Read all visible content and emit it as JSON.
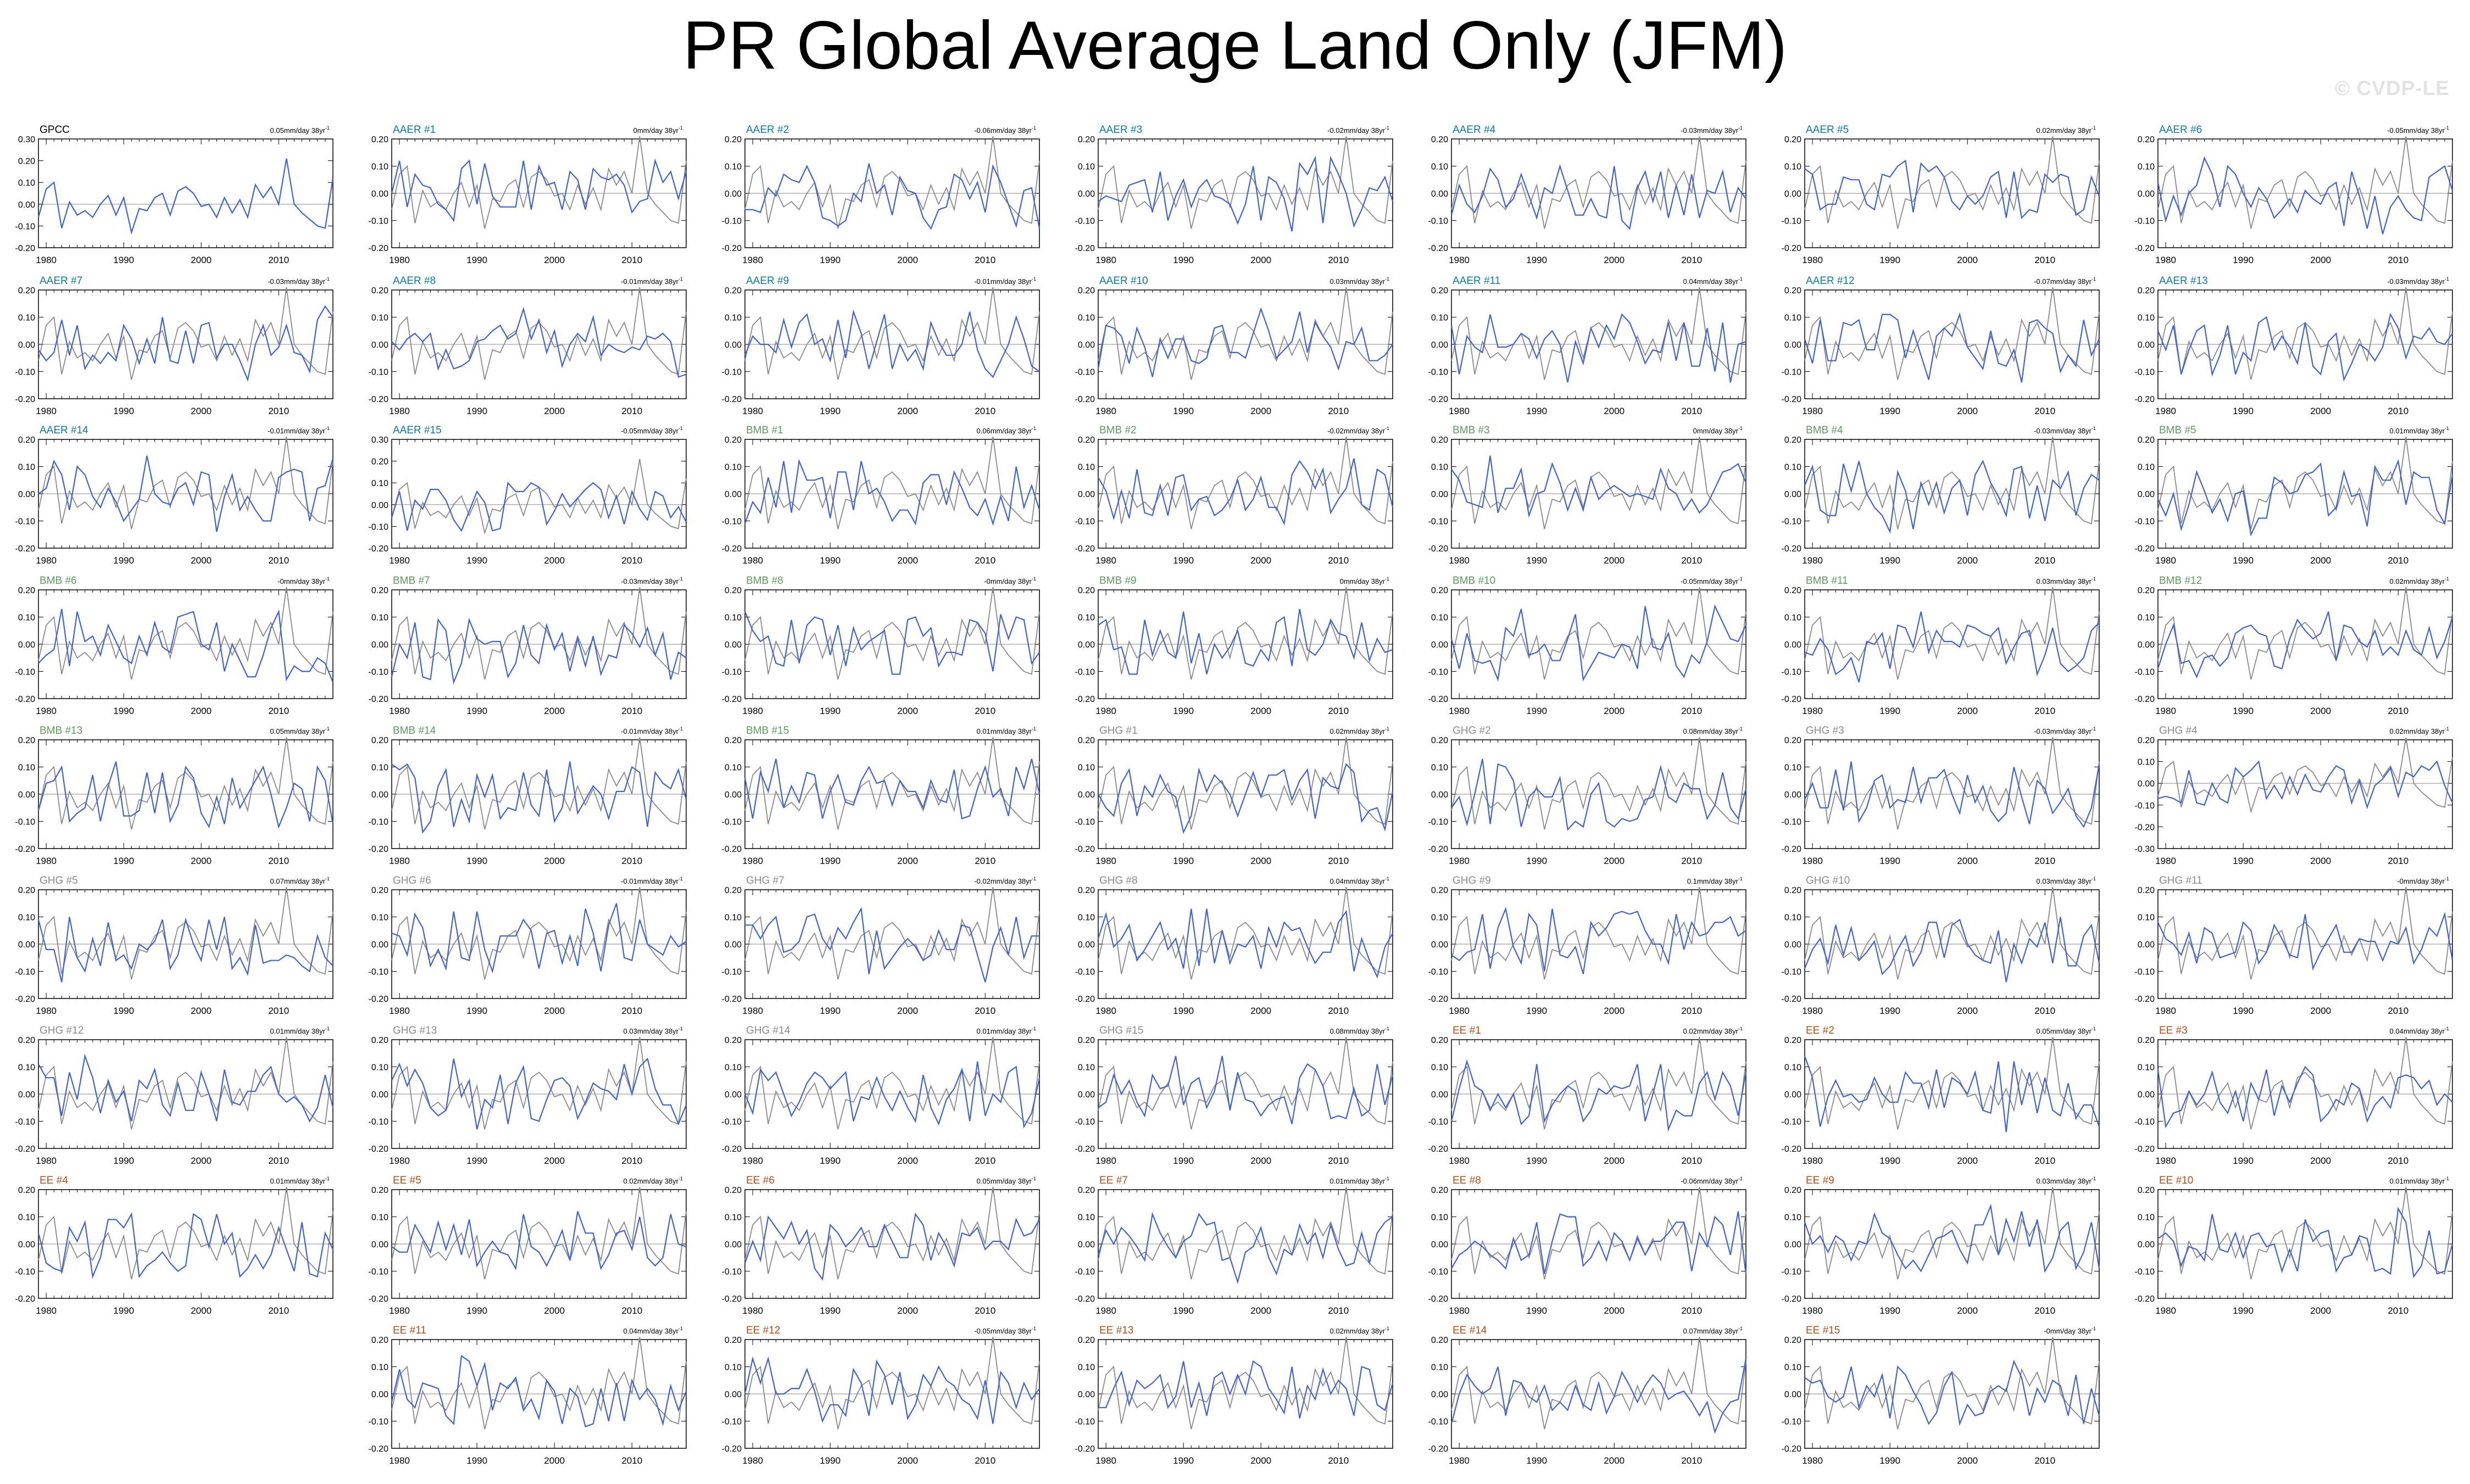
{
  "title": "PR Global Average Land Only (JFM)",
  "watermark": "© CVDP-LE",
  "colors": {
    "obs": "#000000",
    "member": "#3f62d6",
    "obs_overlay": "#8a8a8a",
    "zero_line": "#b0b0b0",
    "AAER": "#0c7aa8",
    "BMB": "#5e9c5e",
    "GHG": "#8c8c8c",
    "EE": "#b4501a"
  },
  "x_ticks": [
    "1980",
    "1990",
    "2000",
    "2010"
  ],
  "chart_data": {
    "type": "line",
    "x_range": [
      1979,
      2018
    ],
    "panels": [
      {
        "label": "GPCC",
        "group": "OBS",
        "trend": "0.05mm/day 38yr",
        "yticks": [
          "0.30",
          "0.20",
          "0.10",
          "0.00",
          "-0.10",
          "-0.20"
        ],
        "ylim": [
          -0.2,
          0.3
        ]
      },
      {
        "label": "AAER #1",
        "group": "AAER",
        "trend": "0mm/day 38yr",
        "yticks": [
          "0.20",
          "0.10",
          "0.00",
          "-0.10",
          "-0.20"
        ],
        "ylim": [
          -0.2,
          0.2
        ]
      },
      {
        "label": "AAER #2",
        "group": "AAER",
        "trend": "-0.06mm/day 38yr",
        "yticks": [
          "0.20",
          "0.10",
          "0.00",
          "-0.10",
          "-0.20"
        ],
        "ylim": [
          -0.2,
          0.2
        ]
      },
      {
        "label": "AAER #3",
        "group": "AAER",
        "trend": "-0.02mm/day 38yr",
        "yticks": [
          "0.20",
          "0.10",
          "0.00",
          "-0.10",
          "-0.20"
        ],
        "ylim": [
          -0.2,
          0.2
        ]
      },
      {
        "label": "AAER #4",
        "group": "AAER",
        "trend": "-0.03mm/day 38yr",
        "yticks": [
          "0.20",
          "0.10",
          "0.00",
          "-0.10",
          "-0.20"
        ],
        "ylim": [
          -0.2,
          0.2
        ]
      },
      {
        "label": "AAER #5",
        "group": "AAER",
        "trend": "0.02mm/day 38yr",
        "yticks": [
          "0.20",
          "0.10",
          "0.00",
          "-0.10",
          "-0.20"
        ],
        "ylim": [
          -0.2,
          0.2
        ]
      },
      {
        "label": "AAER #6",
        "group": "AAER",
        "trend": "-0.05mm/day 38yr",
        "yticks": [
          "0.20",
          "0.10",
          "0.00",
          "-0.10",
          "-0.20"
        ],
        "ylim": [
          -0.2,
          0.2
        ]
      },
      {
        "label": "AAER #7",
        "group": "AAER",
        "trend": "-0.03mm/day 38yr",
        "yticks": [
          "0.20",
          "0.10",
          "0.00",
          "-0.10",
          "-0.20"
        ],
        "ylim": [
          -0.2,
          0.2
        ]
      },
      {
        "label": "AAER #8",
        "group": "AAER",
        "trend": "-0.01mm/day 38yr",
        "yticks": [
          "0.20",
          "0.10",
          "0.00",
          "-0.10",
          "-0.20"
        ],
        "ylim": [
          -0.2,
          0.2
        ]
      },
      {
        "label": "AAER #9",
        "group": "AAER",
        "trend": "-0.01mm/day 38yr",
        "yticks": [
          "0.20",
          "0.10",
          "0.00",
          "-0.10",
          "-0.20"
        ],
        "ylim": [
          -0.2,
          0.2
        ]
      },
      {
        "label": "AAER #10",
        "group": "AAER",
        "trend": "0.03mm/day 38yr",
        "yticks": [
          "0.20",
          "0.10",
          "0.00",
          "-0.10",
          "-0.20"
        ],
        "ylim": [
          -0.2,
          0.2
        ]
      },
      {
        "label": "AAER #11",
        "group": "AAER",
        "trend": "0.04mm/day 38yr",
        "yticks": [
          "0.20",
          "0.10",
          "0.00",
          "-0.10",
          "-0.20"
        ],
        "ylim": [
          -0.2,
          0.2
        ]
      },
      {
        "label": "AAER #12",
        "group": "AAER",
        "trend": "-0.07mm/day 38yr",
        "yticks": [
          "0.20",
          "0.10",
          "0.00",
          "-0.10",
          "-0.20"
        ],
        "ylim": [
          -0.2,
          0.2
        ]
      },
      {
        "label": "AAER #13",
        "group": "AAER",
        "trend": "-0.03mm/day 38yr",
        "yticks": [
          "0.20",
          "0.10",
          "0.00",
          "-0.10",
          "-0.20"
        ],
        "ylim": [
          -0.2,
          0.2
        ]
      },
      {
        "label": "AAER #14",
        "group": "AAER",
        "trend": "-0.01mm/day 38yr",
        "yticks": [
          "0.20",
          "0.10",
          "0.00",
          "-0.10",
          "-0.20"
        ],
        "ylim": [
          -0.2,
          0.2
        ]
      },
      {
        "label": "AAER #15",
        "group": "AAER",
        "trend": "-0.05mm/day 38yr",
        "yticks": [
          "0.30",
          "0.20",
          "0.10",
          "0.00",
          "-0.10",
          "-0.20"
        ],
        "ylim": [
          -0.2,
          0.3
        ]
      },
      {
        "label": "BMB #1",
        "group": "BMB",
        "trend": "0.06mm/day 38yr",
        "yticks": [
          "0.20",
          "0.10",
          "0.00",
          "-0.10",
          "-0.20"
        ],
        "ylim": [
          -0.2,
          0.2
        ]
      },
      {
        "label": "BMB #2",
        "group": "BMB",
        "trend": "-0.02mm/day 38yr",
        "yticks": [
          "0.20",
          "0.10",
          "0.00",
          "-0.10",
          "-0.20"
        ],
        "ylim": [
          -0.2,
          0.2
        ]
      },
      {
        "label": "BMB #3",
        "group": "BMB",
        "trend": "0mm/day 38yr",
        "yticks": [
          "0.20",
          "0.10",
          "0.00",
          "-0.10",
          "-0.20"
        ],
        "ylim": [
          -0.2,
          0.2
        ]
      },
      {
        "label": "BMB #4",
        "group": "BMB",
        "trend": "-0.03mm/day 38yr",
        "yticks": [
          "0.20",
          "0.10",
          "0.00",
          "-0.10",
          "-0.20"
        ],
        "ylim": [
          -0.2,
          0.2
        ]
      },
      {
        "label": "BMB #5",
        "group": "BMB",
        "trend": "0.01mm/day 38yr",
        "yticks": [
          "0.20",
          "0.10",
          "0.00",
          "-0.10",
          "-0.20"
        ],
        "ylim": [
          -0.2,
          0.2
        ]
      },
      {
        "label": "BMB #6",
        "group": "BMB",
        "trend": "-0mm/day 38yr",
        "yticks": [
          "0.20",
          "0.10",
          "0.00",
          "-0.10",
          "-0.20"
        ],
        "ylim": [
          -0.2,
          0.2
        ]
      },
      {
        "label": "BMB #7",
        "group": "BMB",
        "trend": "-0.03mm/day 38yr",
        "yticks": [
          "0.20",
          "0.10",
          "0.00",
          "-0.10",
          "-0.20"
        ],
        "ylim": [
          -0.2,
          0.2
        ]
      },
      {
        "label": "BMB #8",
        "group": "BMB",
        "trend": "-0mm/day 38yr",
        "yticks": [
          "0.20",
          "0.10",
          "0.00",
          "-0.10",
          "-0.20"
        ],
        "ylim": [
          -0.2,
          0.2
        ]
      },
      {
        "label": "BMB #9",
        "group": "BMB",
        "trend": "0mm/day 38yr",
        "yticks": [
          "0.20",
          "0.10",
          "0.00",
          "-0.10",
          "-0.20"
        ],
        "ylim": [
          -0.2,
          0.2
        ]
      },
      {
        "label": "BMB #10",
        "group": "BMB",
        "trend": "-0.05mm/day 38yr",
        "yticks": [
          "0.20",
          "0.10",
          "0.00",
          "-0.10",
          "-0.20"
        ],
        "ylim": [
          -0.2,
          0.2
        ]
      },
      {
        "label": "BMB #11",
        "group": "BMB",
        "trend": "0.03mm/day 38yr",
        "yticks": [
          "0.20",
          "0.10",
          "0.00",
          "-0.10",
          "-0.20"
        ],
        "ylim": [
          -0.2,
          0.2
        ]
      },
      {
        "label": "BMB #12",
        "group": "BMB",
        "trend": "0.02mm/day 38yr",
        "yticks": [
          "0.20",
          "0.10",
          "0.00",
          "-0.10",
          "-0.20"
        ],
        "ylim": [
          -0.2,
          0.2
        ]
      },
      {
        "label": "BMB #13",
        "group": "BMB",
        "trend": "0.05mm/day 38yr",
        "yticks": [
          "0.20",
          "0.10",
          "0.00",
          "-0.10",
          "-0.20"
        ],
        "ylim": [
          -0.2,
          0.2
        ]
      },
      {
        "label": "BMB #14",
        "group": "BMB",
        "trend": "-0.01mm/day 38yr",
        "yticks": [
          "0.20",
          "0.10",
          "0.00",
          "-0.10",
          "-0.20"
        ],
        "ylim": [
          -0.2,
          0.2
        ]
      },
      {
        "label": "BMB #15",
        "group": "BMB",
        "trend": "0.01mm/day 38yr",
        "yticks": [
          "0.20",
          "0.10",
          "0.00",
          "-0.10",
          "-0.20"
        ],
        "ylim": [
          -0.2,
          0.2
        ]
      },
      {
        "label": "GHG #1",
        "group": "GHG",
        "trend": "0.02mm/day 38yr",
        "yticks": [
          "0.20",
          "0.10",
          "0.00",
          "-0.10",
          "-0.20"
        ],
        "ylim": [
          -0.2,
          0.2
        ]
      },
      {
        "label": "GHG #2",
        "group": "GHG",
        "trend": "0.08mm/day 38yr",
        "yticks": [
          "0.20",
          "0.10",
          "0.00",
          "-0.10",
          "-0.20"
        ],
        "ylim": [
          -0.2,
          0.2
        ]
      },
      {
        "label": "GHG #3",
        "group": "GHG",
        "trend": "-0.03mm/day 38yr",
        "yticks": [
          "0.20",
          "0.10",
          "0.00",
          "-0.10",
          "-0.20"
        ],
        "ylim": [
          -0.2,
          0.2
        ]
      },
      {
        "label": "GHG #4",
        "group": "GHG",
        "trend": "0.02mm/day 38yr",
        "yticks": [
          "0.20",
          "0.10",
          "0.00",
          "-0.10",
          "-0.20",
          "-0.30"
        ],
        "ylim": [
          -0.3,
          0.2
        ]
      },
      {
        "label": "GHG #5",
        "group": "GHG",
        "trend": "0.07mm/day 38yr",
        "yticks": [
          "0.20",
          "0.10",
          "0.00",
          "-0.10",
          "-0.20"
        ],
        "ylim": [
          -0.2,
          0.2
        ]
      },
      {
        "label": "GHG #6",
        "group": "GHG",
        "trend": "-0.01mm/day 38yr",
        "yticks": [
          "0.20",
          "0.10",
          "0.00",
          "-0.10",
          "-0.20"
        ],
        "ylim": [
          -0.2,
          0.2
        ]
      },
      {
        "label": "GHG #7",
        "group": "GHG",
        "trend": "-0.02mm/day 38yr",
        "yticks": [
          "0.20",
          "0.10",
          "0.00",
          "-0.10",
          "-0.20"
        ],
        "ylim": [
          -0.2,
          0.2
        ]
      },
      {
        "label": "GHG #8",
        "group": "GHG",
        "trend": "0.04mm/day 38yr",
        "yticks": [
          "0.20",
          "0.10",
          "0.00",
          "-0.10",
          "-0.20"
        ],
        "ylim": [
          -0.2,
          0.2
        ]
      },
      {
        "label": "GHG #9",
        "group": "GHG",
        "trend": "0.1mm/day 38yr",
        "yticks": [
          "0.20",
          "0.10",
          "0.00",
          "-0.10",
          "-0.20"
        ],
        "ylim": [
          -0.2,
          0.2
        ]
      },
      {
        "label": "GHG #10",
        "group": "GHG",
        "trend": "0.03mm/day 38yr",
        "yticks": [
          "0.20",
          "0.10",
          "0.00",
          "-0.10",
          "-0.20"
        ],
        "ylim": [
          -0.2,
          0.2
        ]
      },
      {
        "label": "GHG #11",
        "group": "GHG",
        "trend": "-0mm/day 38yr",
        "yticks": [
          "0.20",
          "0.10",
          "0.00",
          "-0.10",
          "-0.20"
        ],
        "ylim": [
          -0.2,
          0.2
        ]
      },
      {
        "label": "GHG #12",
        "group": "GHG",
        "trend": "0.01mm/day 38yr",
        "yticks": [
          "0.20",
          "0.10",
          "0.00",
          "-0.10",
          "-0.20"
        ],
        "ylim": [
          -0.2,
          0.2
        ]
      },
      {
        "label": "GHG #13",
        "group": "GHG",
        "trend": "0.03mm/day 38yr",
        "yticks": [
          "0.20",
          "0.10",
          "0.00",
          "-0.10",
          "-0.20"
        ],
        "ylim": [
          -0.2,
          0.2
        ]
      },
      {
        "label": "GHG #14",
        "group": "GHG",
        "trend": "0.01mm/day 38yr",
        "yticks": [
          "0.20",
          "0.10",
          "0.00",
          "-0.10",
          "-0.20"
        ],
        "ylim": [
          -0.2,
          0.2
        ]
      },
      {
        "label": "GHG #15",
        "group": "GHG",
        "trend": "0.08mm/day 38yr",
        "yticks": [
          "0.20",
          "0.10",
          "0.00",
          "-0.10",
          "-0.20"
        ],
        "ylim": [
          -0.2,
          0.2
        ]
      },
      {
        "label": "EE #1",
        "group": "EE",
        "trend": "0.02mm/day 38yr",
        "yticks": [
          "0.20",
          "0.10",
          "0.00",
          "-0.10",
          "-0.20"
        ],
        "ylim": [
          -0.2,
          0.2
        ]
      },
      {
        "label": "EE #2",
        "group": "EE",
        "trend": "0.05mm/day 38yr",
        "yticks": [
          "0.20",
          "0.10",
          "0.00",
          "-0.10",
          "-0.20"
        ],
        "ylim": [
          -0.2,
          0.2
        ]
      },
      {
        "label": "EE #3",
        "group": "EE",
        "trend": "0.04mm/day 38yr",
        "yticks": [
          "0.20",
          "0.10",
          "0.00",
          "-0.10",
          "-0.20"
        ],
        "ylim": [
          -0.2,
          0.2
        ]
      },
      {
        "label": "EE #4",
        "group": "EE",
        "trend": "0.01mm/day 38yr",
        "yticks": [
          "0.20",
          "0.10",
          "0.00",
          "-0.10",
          "-0.20"
        ],
        "ylim": [
          -0.2,
          0.2
        ]
      },
      {
        "label": "EE #5",
        "group": "EE",
        "trend": "0.02mm/day 38yr",
        "yticks": [
          "0.20",
          "0.10",
          "0.00",
          "-0.10",
          "-0.20"
        ],
        "ylim": [
          -0.2,
          0.2
        ]
      },
      {
        "label": "EE #6",
        "group": "EE",
        "trend": "0.05mm/day 38yr",
        "yticks": [
          "0.20",
          "0.10",
          "0.00",
          "-0.10",
          "-0.20"
        ],
        "ylim": [
          -0.2,
          0.2
        ]
      },
      {
        "label": "EE #7",
        "group": "EE",
        "trend": "0.01mm/day 38yr",
        "yticks": [
          "0.20",
          "0.10",
          "0.00",
          "-0.10",
          "-0.20"
        ],
        "ylim": [
          -0.2,
          0.2
        ]
      },
      {
        "label": "EE #8",
        "group": "EE",
        "trend": "-0.06mm/day 38yr",
        "yticks": [
          "0.20",
          "0.10",
          "0.00",
          "-0.10",
          "-0.20"
        ],
        "ylim": [
          -0.2,
          0.2
        ]
      },
      {
        "label": "EE #9",
        "group": "EE",
        "trend": "0.03mm/day 38yr",
        "yticks": [
          "0.20",
          "0.10",
          "0.00",
          "-0.10",
          "-0.20"
        ],
        "ylim": [
          -0.2,
          0.2
        ]
      },
      {
        "label": "EE #10",
        "group": "EE",
        "trend": "0.01mm/day 38yr",
        "yticks": [
          "0.20",
          "0.10",
          "0.00",
          "-0.10",
          "-0.20"
        ],
        "ylim": [
          -0.2,
          0.2
        ]
      },
      {
        "label": "EE #11",
        "group": "EE",
        "trend": "0.04mm/day 38yr",
        "yticks": [
          "0.20",
          "0.10",
          "0.00",
          "-0.10",
          "-0.20"
        ],
        "ylim": [
          -0.2,
          0.2
        ]
      },
      {
        "label": "EE #12",
        "group": "EE",
        "trend": "-0.05mm/day 38yr",
        "yticks": [
          "0.20",
          "0.10",
          "0.00",
          "-0.10",
          "-0.20"
        ],
        "ylim": [
          -0.2,
          0.2
        ]
      },
      {
        "label": "EE #13",
        "group": "EE",
        "trend": "0.02mm/day 38yr",
        "yticks": [
          "0.20",
          "0.10",
          "0.00",
          "-0.10",
          "-0.20"
        ],
        "ylim": [
          -0.2,
          0.2
        ]
      },
      {
        "label": "EE #14",
        "group": "EE",
        "trend": "0.07mm/day 38yr",
        "yticks": [
          "0.20",
          "0.10",
          "0.00",
          "-0.10",
          "-0.20"
        ],
        "ylim": [
          -0.2,
          0.2
        ]
      },
      {
        "label": "EE #15",
        "group": "EE",
        "trend": "-0mm/day 38yr",
        "yticks": [
          "0.20",
          "0.10",
          "0.00",
          "-0.10",
          "-0.20"
        ],
        "ylim": [
          -0.2,
          0.2
        ]
      }
    ],
    "obs_series": {
      "name": "GPCC",
      "values": [
        -0.06,
        0.07,
        0.1,
        -0.11,
        0.01,
        -0.05,
        -0.03,
        -0.06,
        0.0,
        0.04,
        -0.05,
        0.03,
        -0.13,
        -0.02,
        -0.03,
        0.03,
        0.05,
        -0.05,
        0.06,
        0.08,
        0.05,
        -0.01,
        0.0,
        -0.06,
        0.03,
        -0.04,
        0.02,
        -0.06,
        0.09,
        0.03,
        0.08,
        0.0,
        0.21,
        0.0,
        -0.04,
        -0.07,
        -0.1,
        -0.11,
        0.12
      ]
    }
  }
}
